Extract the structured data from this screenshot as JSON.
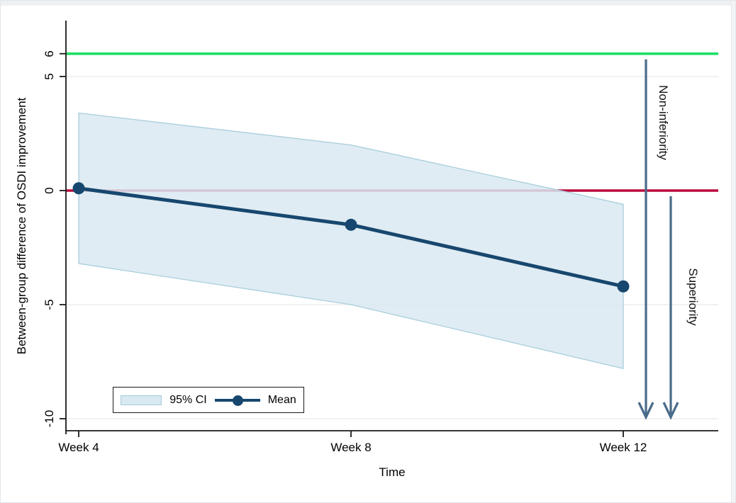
{
  "chart_data": {
    "type": "line",
    "title": "",
    "xlabel": "Time",
    "ylabel": "Between-group difference of OSDI improvement",
    "categories": [
      "Week 4",
      "Week 8",
      "Week 12"
    ],
    "series": [
      {
        "name": "Mean",
        "values": [
          0.1,
          -1.5,
          -4.2
        ],
        "color": "#17476e"
      },
      {
        "name": "95% CI",
        "upper": [
          3.4,
          2.0,
          -0.6
        ],
        "lower": [
          -3.2,
          -5.0,
          -7.8
        ],
        "fill": "#d9e9f1"
      }
    ],
    "yticks": [
      6,
      5,
      0,
      -5,
      -10
    ],
    "ytick_labels": [
      "6",
      "5",
      "0",
      "-5",
      "-10"
    ],
    "ylim": [
      -10.6,
      7.4
    ],
    "grid": true,
    "legend_position": "inside-bottom-left",
    "reference_lines": [
      {
        "value": 6,
        "color": "#1de066",
        "meaning": "non-inferiority margin"
      },
      {
        "value": 0,
        "color": "#bb0a3c",
        "meaning": "zero line"
      }
    ],
    "annotations": [
      {
        "text": "Non-inferiority",
        "arrow_from": 6,
        "arrow_to": -10
      },
      {
        "text": "Superiority",
        "arrow_from": 0,
        "arrow_to": -10
      }
    ],
    "arrow_color": "#4a6b8a"
  },
  "legend": {
    "ci_label": "95% CI",
    "mean_label": "Mean"
  },
  "colors": {
    "band_fill": "#d9e9f1",
    "band_edge": "#a9cedd",
    "mean_line": "#17476e",
    "green_line": "#1de066",
    "red_line": "#bb0a3c",
    "arrow": "#4a6b8a",
    "gridline": "#e8eef0",
    "axis": "#1a1a1a"
  }
}
